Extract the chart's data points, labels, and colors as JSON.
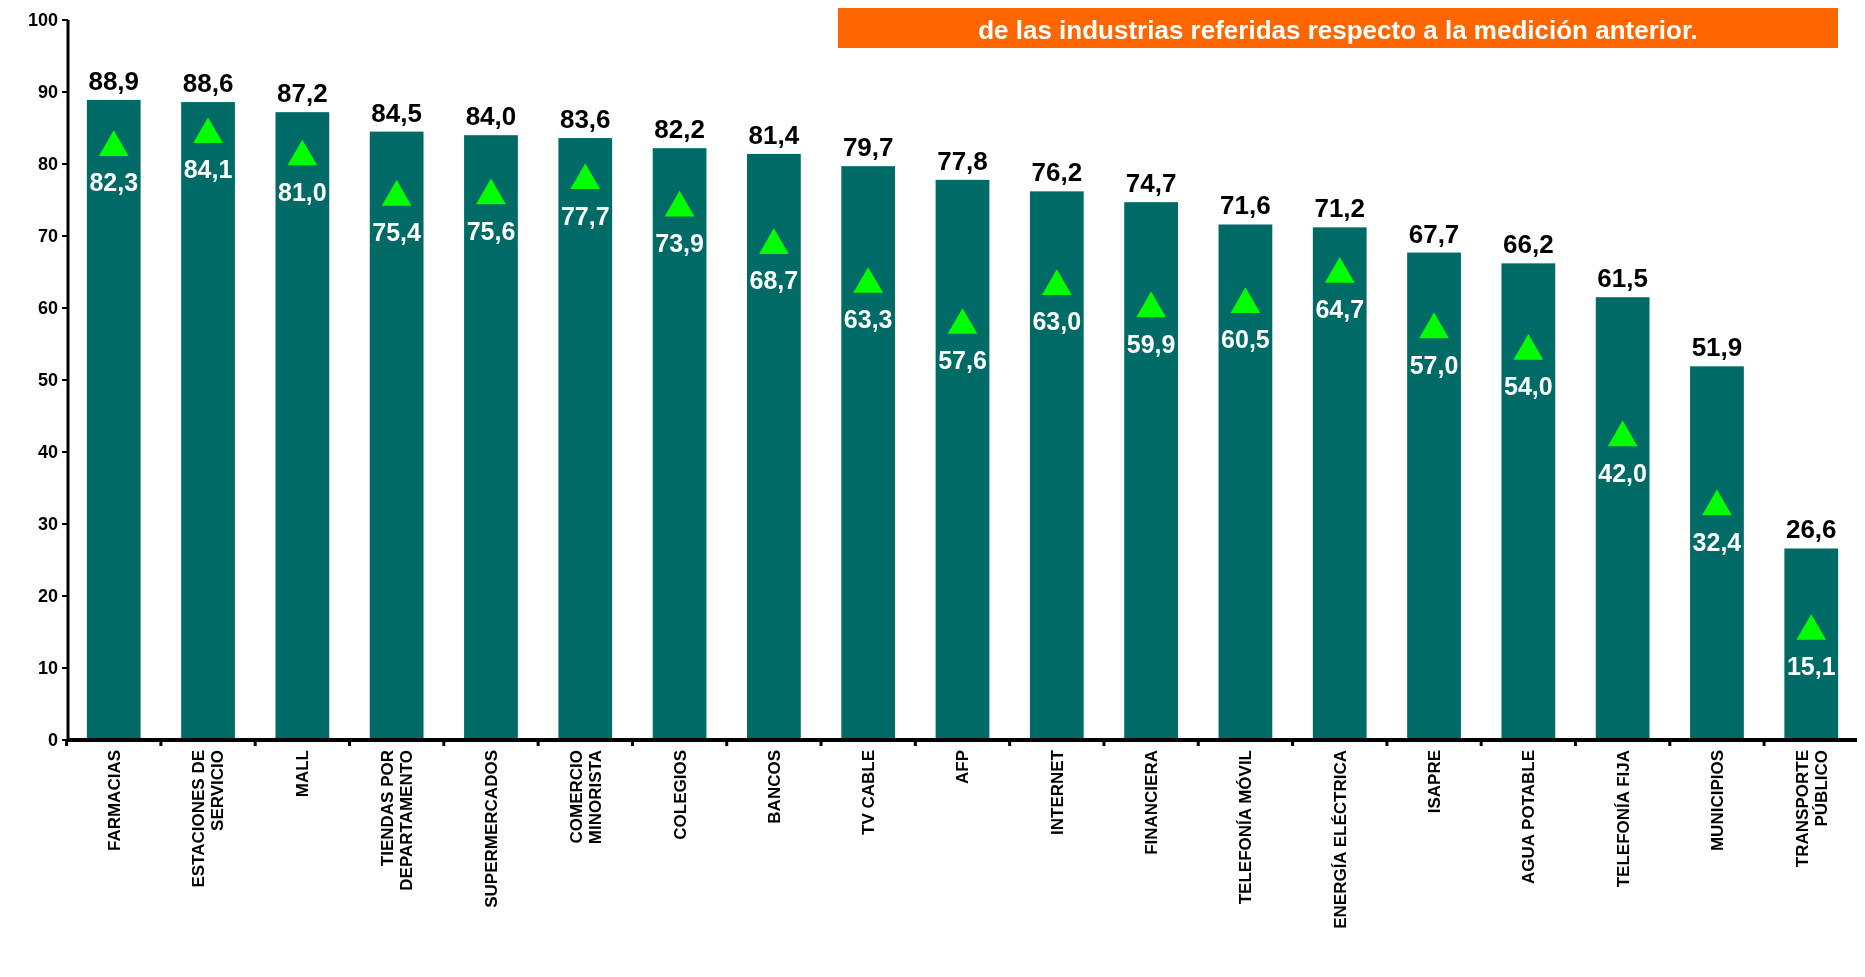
{
  "chart_data": {
    "type": "bar",
    "annotations": [
      "de las industrias referidas respecto a la medición anterior."
    ],
    "categories": [
      "FARMACIAS",
      "ESTACIONES DE\nSERVICIO",
      "MALL",
      "TIENDAS POR\nDEPARTAMENTO",
      "SUPERMERCADOS",
      "COMERCIO\nMINORISTA",
      "COLEGIOS",
      "BANCOS",
      "TV CABLE",
      "AFP",
      "INTERNET",
      "FINANCIERA",
      "TELEFONÍA MÓVIL",
      "ENERGÍA ELÉCTRICA",
      "ISAPRE",
      "AGUA POTABLE",
      "TELEFONÍA FIJA",
      "MUNICIPIOS",
      "TRANSPORTE\nPÚBLICO"
    ],
    "series": [
      {
        "color": "#006b66",
        "values": [
          88.9,
          88.6,
          87.2,
          84.5,
          84.0,
          83.6,
          82.2,
          81.4,
          79.7,
          77.8,
          76.2,
          74.7,
          71.6,
          71.2,
          67.7,
          66.2,
          61.5,
          51.9,
          26.6
        ],
        "value_labels": [
          "88,9",
          "88,6",
          "87,2",
          "84,5",
          "84,0",
          "83,6",
          "82,2",
          "81,4",
          "79,7",
          "77,8",
          "76,2",
          "74,7",
          "71,6",
          "71,2",
          "67,7",
          "66,2",
          "61,5",
          "51,9",
          "26,6"
        ]
      },
      {
        "type": "scatter",
        "color": "#00ff00",
        "marker": "triangle",
        "values": [
          82.3,
          84.1,
          81.0,
          75.4,
          75.6,
          77.7,
          73.9,
          68.7,
          63.3,
          57.6,
          63.0,
          59.9,
          60.5,
          64.7,
          57.0,
          54.0,
          42.0,
          32.4,
          15.1
        ],
        "value_labels": [
          "82,3",
          "84,1",
          "81,0",
          "75,4",
          "75,6",
          "77,7",
          "73,9",
          "68,7",
          "63,3",
          "57,6",
          "63,0",
          "59,9",
          "60,5",
          "64,7",
          "57,0",
          "54,0",
          "42,0",
          "32,4",
          "15,1"
        ]
      }
    ],
    "ylim": [
      0,
      100
    ],
    "yticks": [
      0,
      10,
      20,
      30,
      40,
      50,
      60,
      70,
      80,
      90,
      100
    ],
    "grid": false
  }
}
